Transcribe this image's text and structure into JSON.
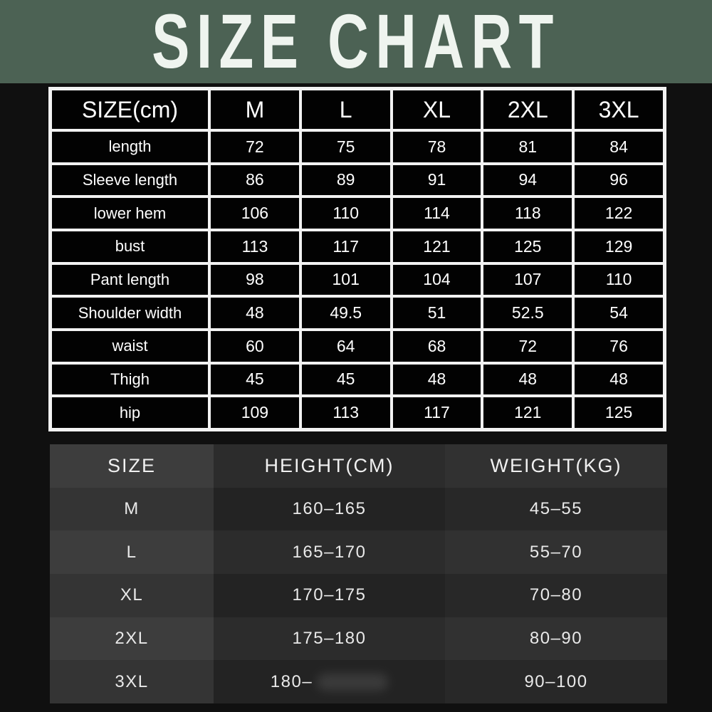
{
  "banner": {
    "title": "SIZE CHART"
  },
  "colors": {
    "banner_green": "#4c6254",
    "page_background": "#101010",
    "table_border_white": "#f2f2f2",
    "table_cell_black": "#020202",
    "fit_row_light": "#3d3d3d",
    "fit_row_dark": "#232323",
    "text_white": "#ffffff"
  },
  "chart_data": [
    {
      "type": "table",
      "title": "SIZE CHART",
      "columns": [
        "SIZE(cm)",
        "M",
        "L",
        "XL",
        "2XL",
        "3XL"
      ],
      "rows": [
        [
          "length",
          "72",
          "75",
          "78",
          "81",
          "84"
        ],
        [
          "Sleeve length",
          "86",
          "89",
          "91",
          "94",
          "96"
        ],
        [
          "lower hem",
          "106",
          "110",
          "114",
          "118",
          "122"
        ],
        [
          "bust",
          "113",
          "117",
          "121",
          "125",
          "129"
        ],
        [
          "Pant length",
          "98",
          "101",
          "104",
          "107",
          "110"
        ],
        [
          "Shoulder width",
          "48",
          "49.5",
          "51",
          "52.5",
          "54"
        ],
        [
          "waist",
          "60",
          "64",
          "68",
          "72",
          "76"
        ],
        [
          "Thigh",
          "45",
          "45",
          "48",
          "48",
          "48"
        ],
        [
          "hip",
          "109",
          "113",
          "117",
          "121",
          "125"
        ]
      ]
    },
    {
      "type": "table",
      "columns": [
        "SIZE",
        "HEIGHT(CM)",
        "WEIGHT(KG)"
      ],
      "rows": [
        [
          "M",
          "160–165",
          "45–55"
        ],
        [
          "L",
          "165–170",
          "55–70"
        ],
        [
          "XL",
          "170–175",
          "70–80"
        ],
        [
          "2XL",
          "175–180",
          "80–90"
        ],
        [
          "3XL",
          "180–",
          "90–100"
        ]
      ],
      "note": "3XL height value is partially blurred out in the image after 180–"
    }
  ]
}
